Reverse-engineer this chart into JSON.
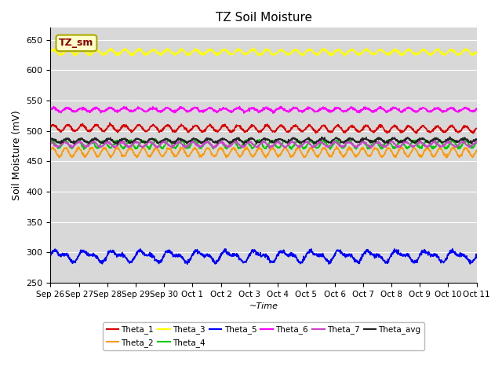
{
  "title": "TZ Soil Moisture",
  "xlabel": "~Time",
  "ylabel": "Soil Moisture (mV)",
  "ylim": [
    250,
    670
  ],
  "yticks": [
    250,
    300,
    350,
    400,
    450,
    500,
    550,
    600,
    650
  ],
  "bg_color": "#d8d8d8",
  "series": {
    "Theta_1": {
      "color": "#dd0000",
      "base": 505,
      "amp": 5,
      "freq": 2.0,
      "phase": 0.2,
      "drift": -0.15
    },
    "Theta_2": {
      "color": "#ff9900",
      "base": 465,
      "amp": 7,
      "freq": 2.2,
      "phase": 0.5,
      "drift": 0.0
    },
    "Theta_3": {
      "color": "#ffff00",
      "base": 630,
      "amp": 4,
      "freq": 2.0,
      "phase": 0.1,
      "drift": 0.0
    },
    "Theta_4": {
      "color": "#00cc00",
      "base": 478,
      "amp": 6,
      "freq": 2.2,
      "phase": 0.7,
      "drift": 0.0
    },
    "Theta_5": {
      "color": "#0000ff",
      "base": 294,
      "amp": 7,
      "freq": 1.0,
      "phase": 0.0,
      "drift": 0.0
    },
    "Theta_6": {
      "color": "#ff00ff",
      "base": 535,
      "amp": 3,
      "freq": 2.0,
      "phase": 0.3,
      "drift": 0.0
    },
    "Theta_7": {
      "color": "#cc44cc",
      "base": 478,
      "amp": 4,
      "freq": 2.0,
      "phase": 1.5,
      "drift": 0.0
    },
    "Theta_avg": {
      "color": "#222222",
      "base": 484,
      "amp": 3,
      "freq": 2.0,
      "phase": 0.8,
      "drift": 0.05
    }
  },
  "xtick_labels": [
    "Sep 26",
    "Sep 27",
    "Sep 28",
    "Sep 29",
    "Sep 30",
    "Oct 1",
    "Oct 2",
    "Oct 3",
    "Oct 4",
    "Oct 5",
    "Oct 6",
    "Oct 7",
    "Oct 8",
    "Oct 9",
    "Oct 10",
    "Oct 11"
  ],
  "n_points": 1500,
  "legend_label": "TZ_sm",
  "legend_text_color": "#8b0000",
  "legend_bg": "#ffffcc",
  "legend_border": "#aaaa00"
}
